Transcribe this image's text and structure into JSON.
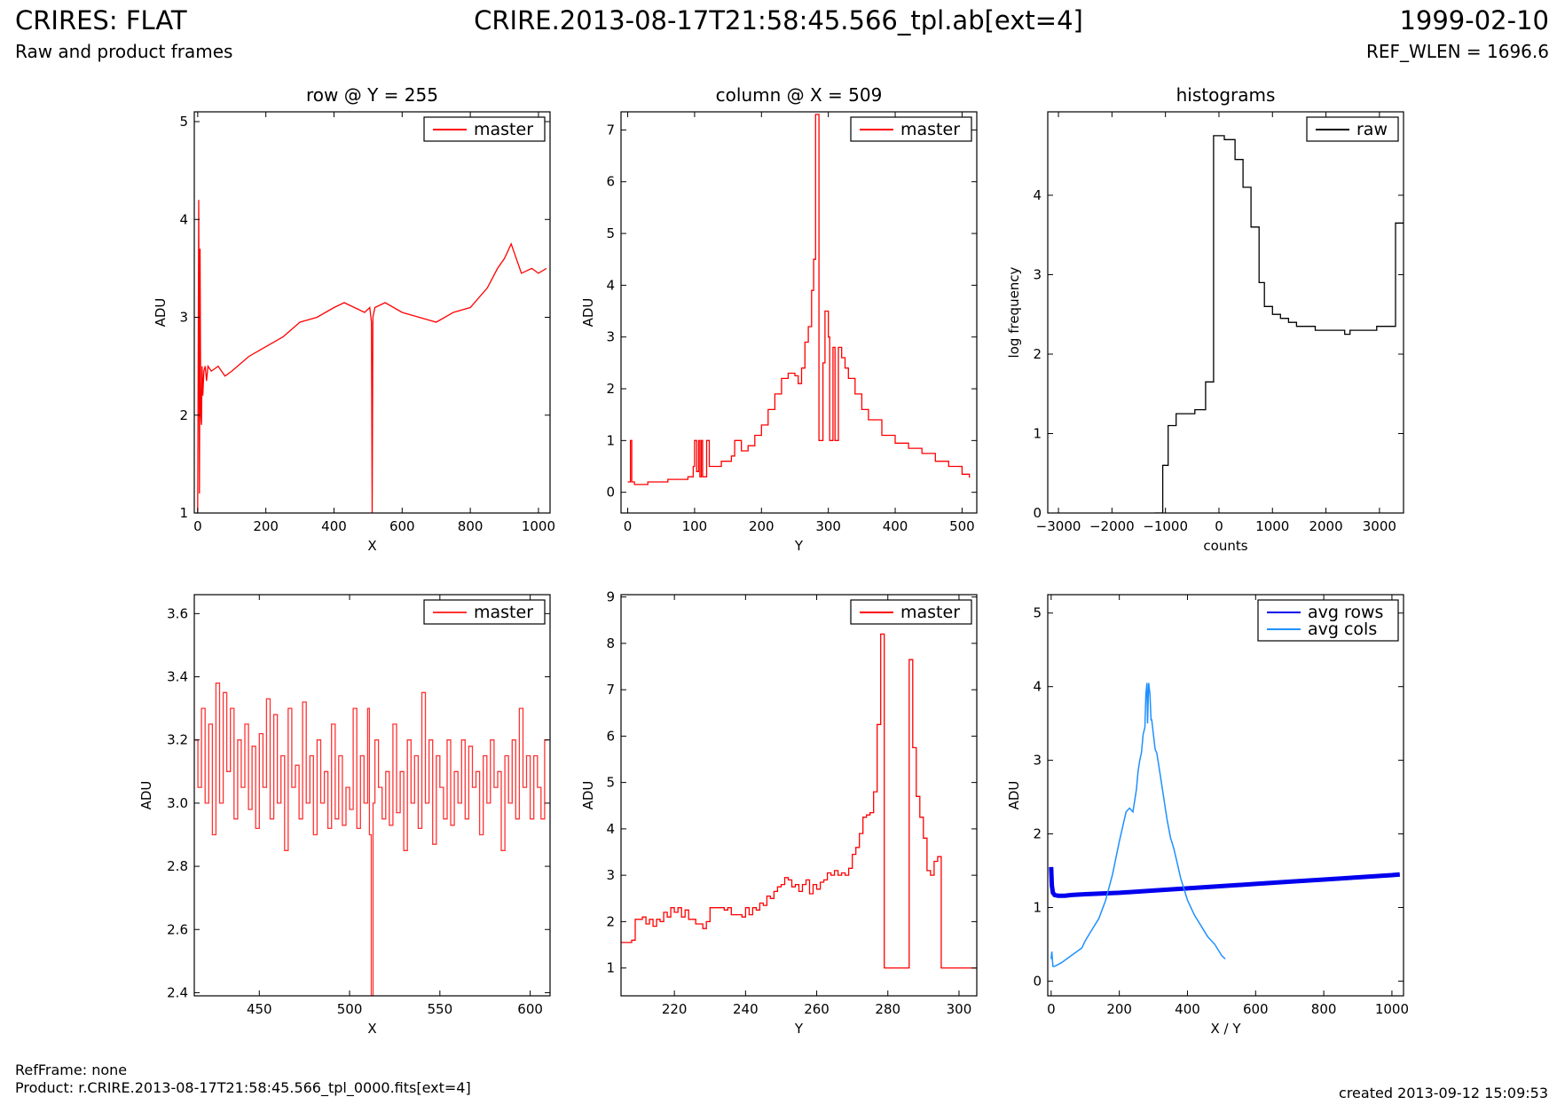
{
  "header": {
    "title": "CRIRES: FLAT",
    "subtitle": "Raw and product frames",
    "file": "CRIRE.2013-08-17T21:58:45.566_tpl.ab[ext=4]",
    "date": "1999-02-10",
    "ref_wlen": "REF_WLEN = 1696.6"
  },
  "footer": {
    "refframe": "RefFrame: none",
    "product": "Product: r.CRIRE.2013-08-17T21:58:45.566_tpl_0000.fits[ext=4]",
    "created": "created 2013-09-12 15:09:53"
  },
  "colors": {
    "red": "#ff0000",
    "light_red": "#ff3333",
    "black": "#000000",
    "blue": "#0000ee",
    "light_blue": "#1e90ff"
  },
  "chart_data": [
    {
      "id": "row",
      "type": "line",
      "title": "row @ Y = 255",
      "xlabel": "X",
      "ylabel": "ADU",
      "xlim": [
        -10,
        1034
      ],
      "ylim": [
        1,
        5.1
      ],
      "xticks": [
        0,
        200,
        400,
        600,
        800,
        1000
      ],
      "yticks": [
        1,
        2,
        3,
        4,
        5
      ],
      "legend": "top-right",
      "series": [
        {
          "name": "master",
          "color": "#ff0000",
          "step": false,
          "x": [
            0,
            3,
            5,
            7,
            9,
            11,
            13,
            15,
            18,
            22,
            26,
            30,
            40,
            60,
            80,
            100,
            150,
            200,
            250,
            300,
            350,
            400,
            430,
            460,
            490,
            505,
            510,
            512,
            514,
            520,
            550,
            600,
            650,
            700,
            750,
            800,
            850,
            880,
            900,
            920,
            950,
            980,
            1000,
            1023
          ],
          "y": [
            1.0,
            4.2,
            1.2,
            3.7,
            2.0,
            1.9,
            2.5,
            2.2,
            2.45,
            2.5,
            2.35,
            2.5,
            2.45,
            2.5,
            2.4,
            2.45,
            2.6,
            2.7,
            2.8,
            2.95,
            3.0,
            3.1,
            3.15,
            3.1,
            3.05,
            3.1,
            2.95,
            1.0,
            3.0,
            3.1,
            3.15,
            3.05,
            3.0,
            2.95,
            3.05,
            3.1,
            3.3,
            3.5,
            3.6,
            3.75,
            3.45,
            3.5,
            3.45,
            3.5
          ]
        }
      ]
    },
    {
      "id": "column",
      "type": "line",
      "title": "column @ X = 509",
      "xlabel": "Y",
      "ylabel": "ADU",
      "xlim": [
        -10,
        522
      ],
      "ylim": [
        -0.4,
        7.35
      ],
      "xticks": [
        0,
        100,
        200,
        300,
        400,
        500
      ],
      "yticks": [
        0,
        1,
        2,
        3,
        4,
        5,
        6,
        7
      ],
      "legend": "top-right",
      "series": [
        {
          "name": "master",
          "color": "#ff0000",
          "step": true,
          "x": [
            0,
            4,
            6,
            10,
            30,
            60,
            90,
            98,
            100,
            103,
            106,
            108,
            110,
            112,
            118,
            122,
            140,
            155,
            160,
            170,
            180,
            190,
            200,
            210,
            220,
            230,
            240,
            250,
            255,
            260,
            265,
            270,
            275,
            278,
            281,
            283,
            286,
            288,
            290,
            292,
            295,
            300,
            302,
            305,
            307,
            310,
            312,
            315,
            320,
            325,
            330,
            340,
            350,
            360,
            380,
            400,
            420,
            440,
            460,
            480,
            500,
            511
          ],
          "y": [
            0.2,
            1.0,
            0.2,
            0.15,
            0.2,
            0.25,
            0.3,
            0.5,
            1.0,
            0.4,
            1.0,
            0.3,
            1.0,
            0.3,
            1.0,
            0.5,
            0.6,
            0.7,
            1.0,
            0.8,
            0.9,
            1.1,
            1.3,
            1.6,
            1.9,
            2.2,
            2.3,
            2.25,
            2.1,
            2.4,
            2.9,
            3.2,
            3.9,
            4.5,
            7.3,
            7.3,
            1.0,
            1.0,
            1.0,
            2.5,
            3.5,
            3.0,
            1.0,
            1.0,
            2.8,
            1.0,
            1.0,
            2.8,
            2.6,
            2.4,
            2.2,
            1.9,
            1.6,
            1.4,
            1.1,
            0.95,
            0.85,
            0.75,
            0.6,
            0.5,
            0.35,
            0.28
          ]
        }
      ]
    },
    {
      "id": "histograms",
      "type": "line",
      "title": "histograms",
      "xlabel": "counts",
      "ylabel": "log frequency",
      "xlim": [
        -3200,
        3450
      ],
      "ylim": [
        0,
        5.05
      ],
      "xticks": [
        -3000,
        -2000,
        -1000,
        0,
        1000,
        2000,
        3000
      ],
      "yticks": [
        0,
        1,
        2,
        3,
        4
      ],
      "legend": "top-right",
      "series": [
        {
          "name": "raw",
          "color": "#000000",
          "step": true,
          "x": [
            -1200,
            -1050,
            -950,
            -800,
            -600,
            -450,
            -250,
            -100,
            100,
            300,
            450,
            600,
            750,
            850,
            1000,
            1150,
            1300,
            1450,
            1650,
            1800,
            2000,
            2200,
            2350,
            2450,
            2600,
            2800,
            2950,
            3150,
            3300,
            3450
          ],
          "y": [
            0,
            0.6,
            1.1,
            1.25,
            1.25,
            1.3,
            1.65,
            4.75,
            4.7,
            4.45,
            4.1,
            3.6,
            2.9,
            2.6,
            2.5,
            2.45,
            2.4,
            2.35,
            2.35,
            2.3,
            2.3,
            2.3,
            2.25,
            2.3,
            2.3,
            2.3,
            2.35,
            2.35,
            3.65,
            3.65
          ]
        }
      ]
    },
    {
      "id": "row-zoom",
      "type": "line",
      "title": "",
      "xlabel": "X",
      "ylabel": "ADU",
      "xlim": [
        414,
        611
      ],
      "ylim": [
        2.39,
        3.66
      ],
      "xticks": [
        450,
        500,
        550,
        600
      ],
      "yticks": [
        2.4,
        2.6,
        2.8,
        3.0,
        3.2,
        3.4,
        3.6
      ],
      "ytickfmt": 1,
      "legend": "top-right",
      "series": [
        {
          "name": "master",
          "color": "#ff3333",
          "step": true,
          "x": [
            414,
            416,
            418,
            420,
            422,
            424,
            426,
            428,
            430,
            432,
            434,
            436,
            438,
            440,
            442,
            444,
            446,
            448,
            450,
            452,
            454,
            456,
            458,
            460,
            462,
            464,
            466,
            468,
            470,
            472,
            474,
            476,
            478,
            480,
            482,
            484,
            486,
            488,
            490,
            492,
            494,
            496,
            498,
            500,
            502,
            504,
            506,
            508,
            510,
            511,
            512,
            513,
            514,
            516,
            518,
            520,
            522,
            524,
            526,
            528,
            530,
            532,
            534,
            536,
            538,
            540,
            542,
            544,
            546,
            548,
            550,
            552,
            554,
            556,
            558,
            560,
            562,
            564,
            566,
            568,
            570,
            572,
            574,
            576,
            578,
            580,
            582,
            584,
            586,
            588,
            590,
            592,
            594,
            596,
            598,
            600,
            602,
            604,
            606,
            608,
            610
          ],
          "y": [
            3.2,
            3.05,
            3.3,
            3.0,
            3.25,
            2.9,
            3.38,
            3.0,
            3.35,
            3.1,
            3.3,
            2.95,
            3.2,
            3.05,
            3.25,
            2.98,
            3.18,
            2.92,
            3.22,
            3.05,
            3.33,
            2.95,
            3.28,
            3.0,
            3.15,
            2.85,
            3.3,
            3.05,
            3.12,
            2.95,
            3.32,
            3.0,
            3.15,
            2.9,
            3.2,
            3.0,
            3.1,
            2.92,
            3.25,
            2.95,
            3.15,
            2.93,
            3.05,
            2.98,
            3.3,
            2.92,
            3.15,
            3.0,
            3.3,
            2.9,
            2.39,
            3.0,
            3.2,
            3.05,
            2.95,
            3.1,
            2.93,
            3.25,
            2.97,
            3.1,
            2.85,
            3.2,
            3.0,
            3.15,
            2.92,
            3.35,
            3.0,
            3.2,
            2.87,
            3.15,
            3.05,
            2.95,
            3.2,
            2.93,
            3.1,
            3.0,
            3.2,
            2.95,
            3.18,
            3.05,
            3.1,
            2.9,
            3.15,
            3.0,
            3.2,
            3.05,
            3.1,
            2.85,
            3.15,
            3.0,
            3.2,
            2.95,
            3.3,
            3.05,
            3.15,
            2.95,
            3.15,
            3.05,
            2.95,
            3.2,
            3.2
          ]
        }
      ]
    },
    {
      "id": "column-zoom",
      "type": "line",
      "title": "",
      "xlabel": "Y",
      "ylabel": "ADU",
      "xlim": [
        205,
        305
      ],
      "ylim": [
        0.4,
        9.05
      ],
      "xticks": [
        220,
        240,
        260,
        280,
        300
      ],
      "yticks": [
        1,
        2,
        3,
        4,
        5,
        6,
        7,
        8,
        9
      ],
      "legend": "top-right",
      "series": [
        {
          "name": "master",
          "color": "#ff0000",
          "step": true,
          "x": [
            205,
            208,
            209,
            211,
            212,
            213,
            214,
            215,
            216,
            217,
            218,
            219,
            220,
            221,
            222,
            223,
            224,
            226,
            228,
            229,
            230,
            232,
            234,
            235,
            236,
            238,
            239,
            240,
            241,
            242,
            243,
            244,
            245,
            246,
            247,
            248,
            249,
            250,
            251,
            252,
            253,
            254,
            255,
            256,
            257,
            258,
            259,
            260,
            261,
            262,
            263,
            264,
            265,
            266,
            267,
            268,
            269,
            270,
            271,
            272,
            273,
            274,
            275,
            276,
            277,
            278,
            279,
            280,
            281,
            282,
            283,
            284,
            285,
            286,
            287,
            288,
            289,
            290,
            291,
            292,
            293,
            294,
            295,
            296,
            297,
            298,
            299,
            300,
            301,
            302,
            303,
            305
          ],
          "y": [
            1.55,
            1.6,
            2.05,
            2.1,
            1.95,
            2.05,
            1.9,
            2.05,
            2.0,
            2.2,
            2.1,
            2.3,
            2.2,
            2.3,
            2.1,
            2.25,
            2.05,
            1.95,
            1.85,
            2.0,
            2.3,
            2.3,
            2.25,
            2.3,
            2.15,
            2.15,
            2.1,
            2.3,
            2.15,
            2.3,
            2.25,
            2.4,
            2.35,
            2.55,
            2.5,
            2.65,
            2.75,
            2.8,
            2.95,
            2.9,
            2.75,
            2.8,
            2.65,
            2.8,
            2.9,
            2.6,
            2.8,
            2.7,
            2.85,
            2.9,
            3.05,
            3.0,
            3.1,
            3.0,
            3.05,
            3.0,
            3.15,
            3.45,
            3.6,
            3.9,
            4.25,
            4.3,
            4.35,
            4.8,
            6.25,
            8.2,
            1.0,
            1.0,
            1.0,
            1.0,
            1.0,
            1.0,
            1.0,
            7.65,
            5.75,
            4.7,
            4.25,
            3.8,
            3.1,
            3.0,
            3.3,
            3.4,
            1.0,
            1.0,
            1.0,
            1.0,
            1.0,
            1.0,
            1.0,
            1.0,
            1.0,
            1.0
          ]
        }
      ]
    },
    {
      "id": "averages",
      "type": "line",
      "title": "",
      "xlabel": "X / Y",
      "ylabel": "ADU",
      "xlim": [
        -10,
        1034
      ],
      "ylim": [
        -0.2,
        5.25
      ],
      "xticks": [
        0,
        200,
        400,
        600,
        800,
        1000
      ],
      "yticks": [
        0,
        1,
        2,
        3,
        4,
        5
      ],
      "legend": "top-right",
      "series": [
        {
          "name": "avg rows",
          "color": "#0000ee",
          "step": false,
          "width": 5,
          "x": [
            0,
            2,
            5,
            10,
            20,
            40,
            60,
            100,
            200,
            300,
            400,
            500,
            600,
            700,
            800,
            900,
            1000,
            1023
          ],
          "y": [
            1.55,
            1.3,
            1.2,
            1.17,
            1.16,
            1.16,
            1.17,
            1.18,
            1.2,
            1.23,
            1.26,
            1.29,
            1.32,
            1.35,
            1.38,
            1.41,
            1.44,
            1.45
          ]
        },
        {
          "name": "avg cols",
          "color": "#1e90ff",
          "step": false,
          "width": 1.5,
          "x": [
            0,
            2,
            5,
            10,
            30,
            60,
            90,
            100,
            120,
            140,
            160,
            180,
            200,
            210,
            220,
            230,
            240,
            250,
            255,
            260,
            265,
            270,
            275,
            278,
            281,
            283,
            286,
            290,
            293,
            295,
            300,
            305,
            310,
            320,
            330,
            340,
            350,
            360,
            370,
            380,
            400,
            420,
            440,
            460,
            480,
            500,
            511
          ],
          "y": [
            0.3,
            0.4,
            0.2,
            0.2,
            0.25,
            0.35,
            0.45,
            0.55,
            0.7,
            0.85,
            1.1,
            1.45,
            1.9,
            2.1,
            2.3,
            2.35,
            2.3,
            2.6,
            2.85,
            3.0,
            3.1,
            3.35,
            3.45,
            3.9,
            4.05,
            3.5,
            4.05,
            3.9,
            3.55,
            3.55,
            3.35,
            3.15,
            3.1,
            2.8,
            2.5,
            2.2,
            1.95,
            1.8,
            1.6,
            1.4,
            1.1,
            0.9,
            0.75,
            0.6,
            0.5,
            0.35,
            0.3
          ]
        }
      ]
    }
  ]
}
